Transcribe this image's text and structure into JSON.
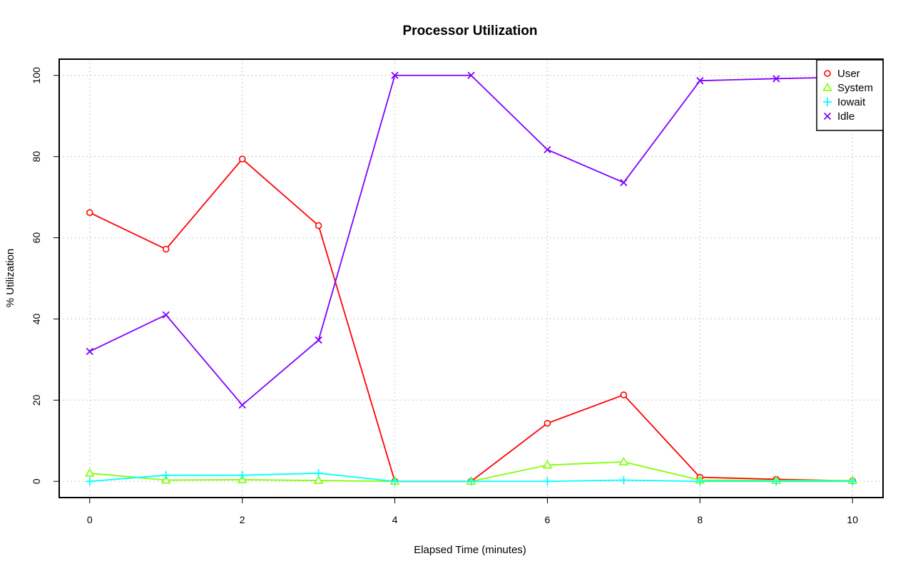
{
  "chart_data": {
    "type": "line",
    "title": "Processor Utilization",
    "xlabel": "Elapsed Time (minutes)",
    "ylabel": "% Utilization",
    "xlim": [
      -0.4,
      10.4
    ],
    "ylim": [
      -4,
      104
    ],
    "x_ticks": [
      0,
      2,
      4,
      6,
      8,
      10
    ],
    "y_ticks": [
      0,
      20,
      40,
      60,
      80,
      100
    ],
    "grid": true,
    "legend_position": "top-right",
    "x": [
      0,
      1,
      2,
      3,
      4,
      5,
      6,
      7,
      8,
      9,
      10
    ],
    "series": [
      {
        "name": "User",
        "color": "#ff0000",
        "marker": "circle",
        "values": [
          66.2,
          57.2,
          79.4,
          63.0,
          0.0,
          0.0,
          14.3,
          21.3,
          1.0,
          0.5,
          0.1
        ]
      },
      {
        "name": "System",
        "color": "#80ff00",
        "marker": "triangle",
        "values": [
          2.0,
          0.3,
          0.4,
          0.2,
          0.0,
          0.0,
          4.0,
          4.8,
          0.3,
          0.2,
          0.2
        ]
      },
      {
        "name": "Iowait",
        "color": "#00ffff",
        "marker": "plus",
        "values": [
          0.0,
          1.5,
          1.5,
          2.0,
          0.0,
          0.0,
          0.0,
          0.3,
          0.0,
          0.0,
          0.0
        ]
      },
      {
        "name": "Idle",
        "color": "#8000ff",
        "marker": "cross",
        "values": [
          32.0,
          41.0,
          18.8,
          34.8,
          100.0,
          100.0,
          81.7,
          73.6,
          98.7,
          99.2,
          99.6
        ]
      }
    ]
  }
}
